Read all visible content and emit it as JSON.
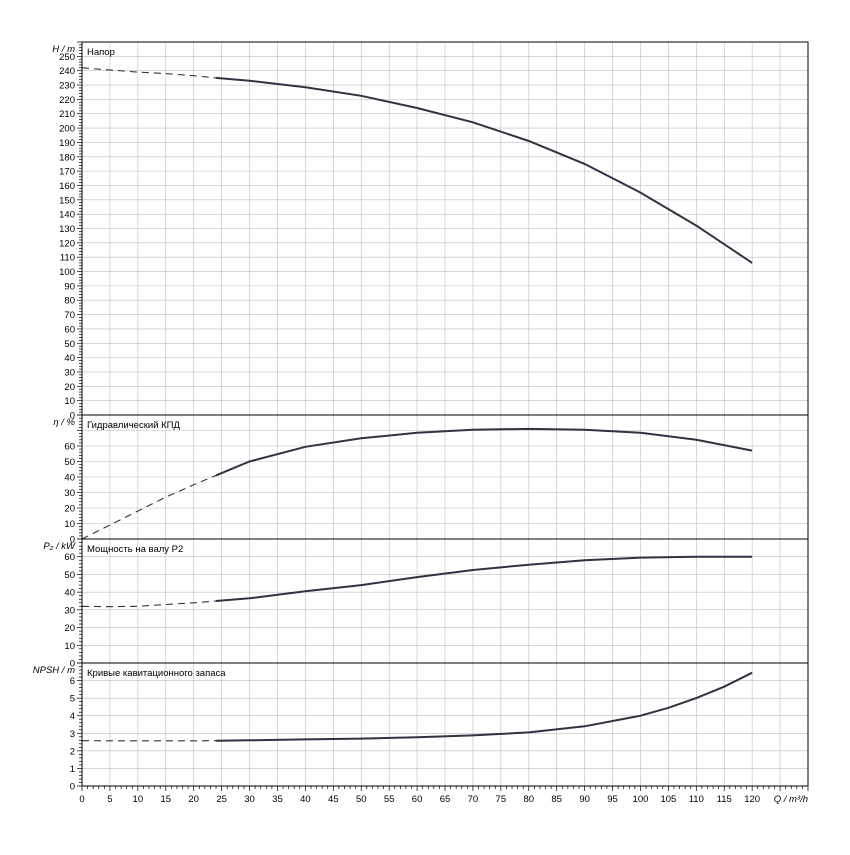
{
  "chart_data": {
    "type": "line",
    "x_axis": {
      "label": "Q / m³/h",
      "range": [
        0,
        130
      ],
      "ticks": [
        0,
        5,
        10,
        15,
        20,
        25,
        30,
        35,
        40,
        45,
        50,
        55,
        60,
        65,
        70,
        75,
        80,
        85,
        90,
        95,
        100,
        105,
        110,
        115,
        120
      ]
    },
    "panels": [
      {
        "id": "head",
        "ylabel": "H / m",
        "title": "Напор",
        "ylim": [
          0,
          260
        ],
        "yticks": [
          0,
          10,
          20,
          30,
          40,
          50,
          60,
          70,
          80,
          90,
          100,
          110,
          120,
          130,
          140,
          150,
          160,
          170,
          180,
          190,
          200,
          210,
          220,
          230,
          240,
          250
        ],
        "dashed": [
          [
            0,
            242
          ],
          [
            5,
            240.5
          ],
          [
            10,
            239
          ],
          [
            15,
            238
          ],
          [
            20,
            236.5
          ],
          [
            24,
            235
          ]
        ],
        "solid": [
          [
            24,
            235
          ],
          [
            30,
            233
          ],
          [
            40,
            228.5
          ],
          [
            50,
            222.5
          ],
          [
            60,
            214
          ],
          [
            70,
            204
          ],
          [
            80,
            191
          ],
          [
            90,
            175
          ],
          [
            100,
            155
          ],
          [
            110,
            132
          ],
          [
            120,
            106
          ]
        ]
      },
      {
        "id": "efficiency",
        "ylabel": "η / %",
        "title": "Гидравлический КПД",
        "ylim": [
          0,
          80
        ],
        "yticks": [
          0,
          10,
          20,
          30,
          40,
          50,
          60
        ],
        "dashed": [
          [
            0,
            0
          ],
          [
            5,
            9
          ],
          [
            10,
            18
          ],
          [
            15,
            27
          ],
          [
            20,
            35
          ],
          [
            24,
            41
          ]
        ],
        "solid": [
          [
            24,
            41
          ],
          [
            30,
            50
          ],
          [
            40,
            59.5
          ],
          [
            50,
            65
          ],
          [
            60,
            68.5
          ],
          [
            70,
            70.5
          ],
          [
            80,
            71
          ],
          [
            90,
            70.5
          ],
          [
            100,
            68.5
          ],
          [
            110,
            64
          ],
          [
            120,
            57
          ]
        ]
      },
      {
        "id": "power",
        "ylabel": "P₂ / kW",
        "title": "Мощность на валу P2",
        "ylim": [
          0,
          70
        ],
        "yticks": [
          0,
          10,
          20,
          30,
          40,
          50,
          60
        ],
        "dashed": [
          [
            0,
            32
          ],
          [
            5,
            31.8
          ],
          [
            10,
            32
          ],
          [
            15,
            33
          ],
          [
            20,
            34
          ],
          [
            24,
            35
          ]
        ],
        "solid": [
          [
            24,
            35
          ],
          [
            30,
            36.5
          ],
          [
            40,
            40.5
          ],
          [
            50,
            44
          ],
          [
            60,
            48.5
          ],
          [
            70,
            52.5
          ],
          [
            80,
            55.5
          ],
          [
            90,
            58
          ],
          [
            100,
            59.5
          ],
          [
            110,
            60
          ],
          [
            120,
            60
          ]
        ]
      },
      {
        "id": "npsh",
        "ylabel": "NPSH / m",
        "title": "Кривые кавитационного запаса",
        "ylim": [
          0,
          7
        ],
        "yticks": [
          0,
          1,
          2,
          3,
          4,
          5,
          6
        ],
        "dashed": [
          [
            0,
            2.58
          ],
          [
            5,
            2.57
          ],
          [
            10,
            2.57
          ],
          [
            15,
            2.57
          ],
          [
            20,
            2.57
          ],
          [
            24,
            2.58
          ]
        ],
        "solid": [
          [
            24,
            2.58
          ],
          [
            30,
            2.6
          ],
          [
            40,
            2.65
          ],
          [
            50,
            2.7
          ],
          [
            60,
            2.78
          ],
          [
            70,
            2.88
          ],
          [
            80,
            3.05
          ],
          [
            90,
            3.4
          ],
          [
            100,
            4.0
          ],
          [
            105,
            4.45
          ],
          [
            110,
            5.0
          ],
          [
            115,
            5.65
          ],
          [
            120,
            6.45
          ]
        ]
      }
    ]
  }
}
